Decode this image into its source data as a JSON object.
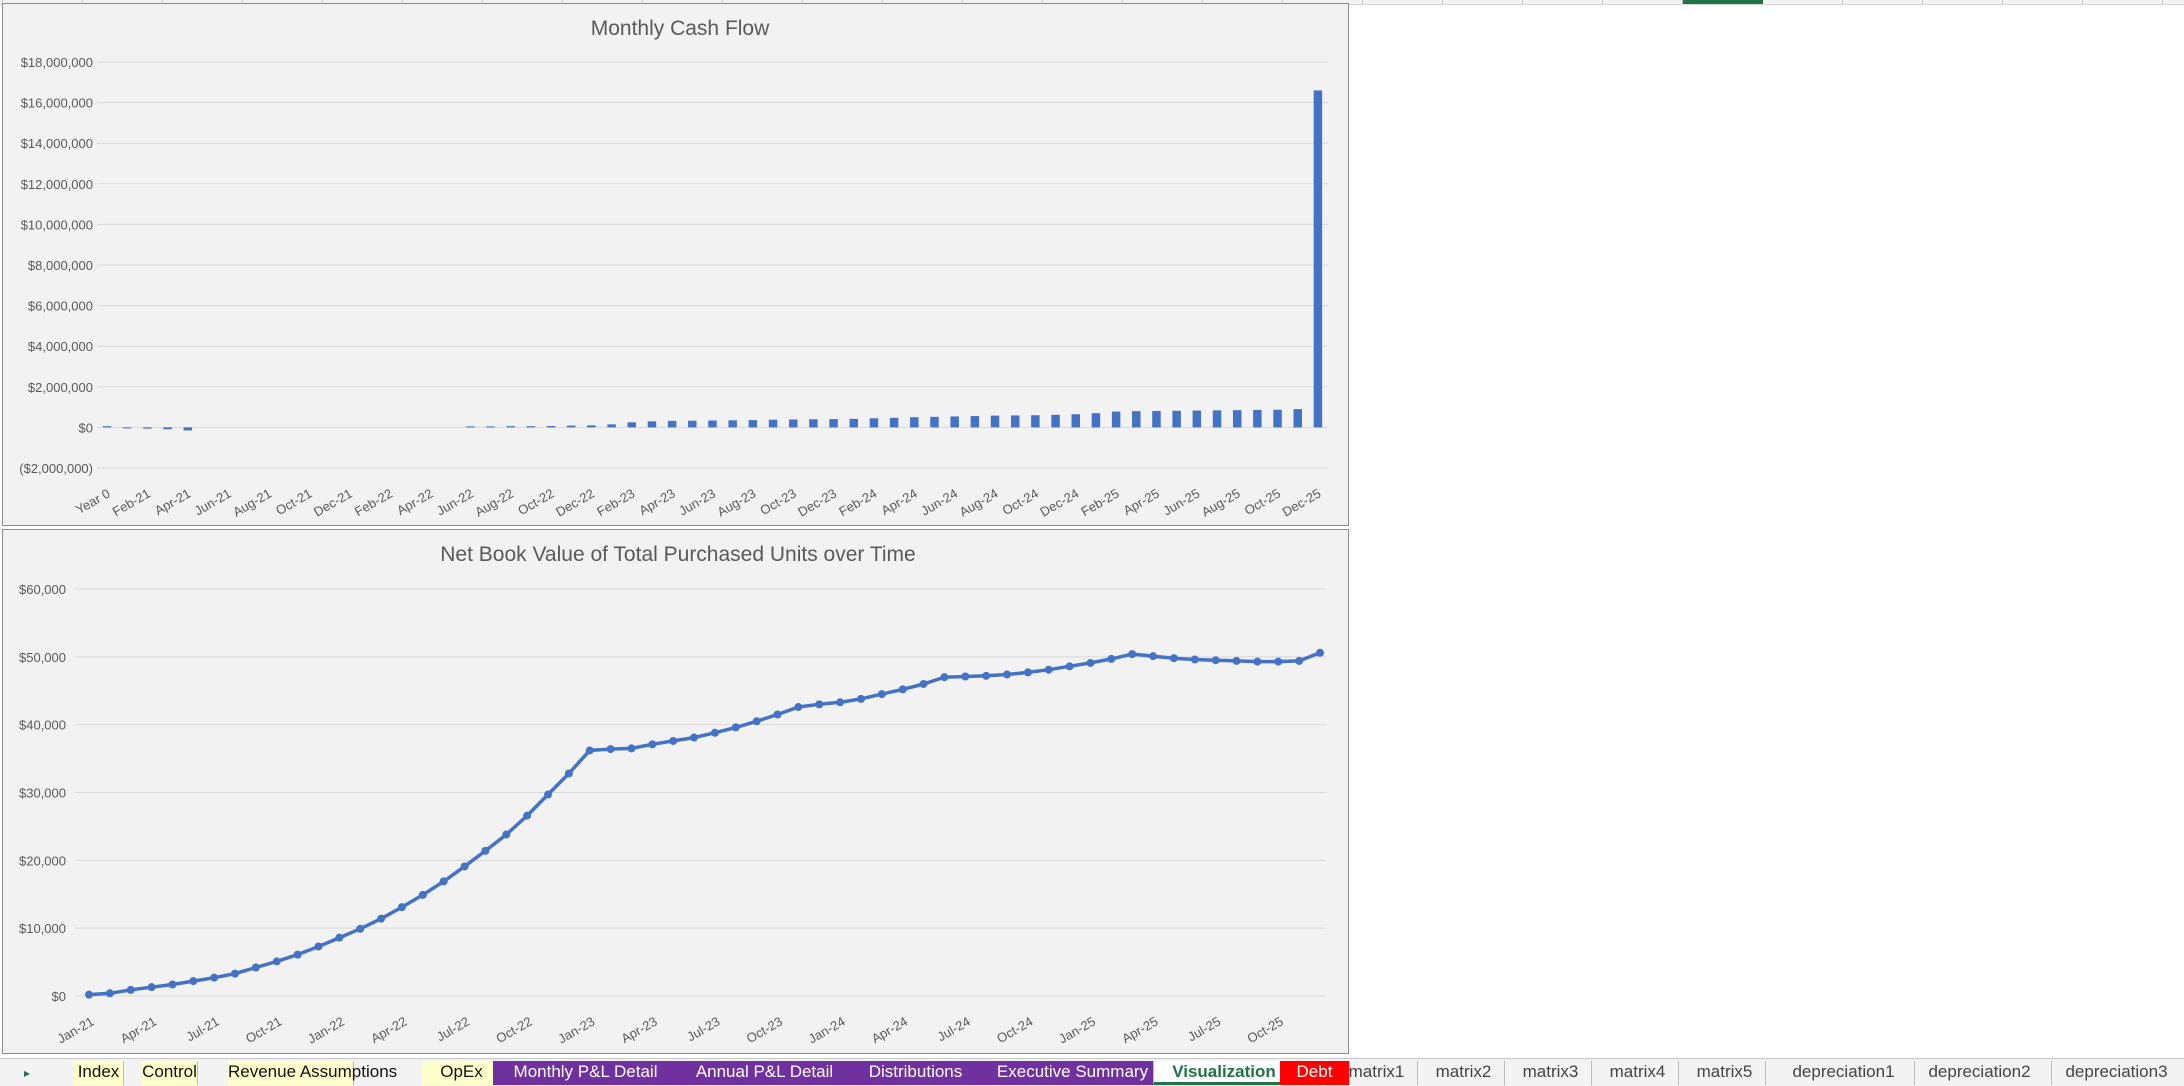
{
  "sheet_tabs": [
    {
      "label": "Index",
      "style": "yellow"
    },
    {
      "label": "Control",
      "style": "yellow"
    },
    {
      "label": "Revenue Assumptions",
      "style": "yellow"
    },
    {
      "label": "OpEx",
      "style": "yellow"
    },
    {
      "label": "Monthly P&L Detail",
      "style": "purple"
    },
    {
      "label": "Annual P&L Detail",
      "style": "purple"
    },
    {
      "label": "Distributions",
      "style": "purple"
    },
    {
      "label": "Executive Summary",
      "style": "purple"
    },
    {
      "label": "Visualization",
      "style": "active"
    },
    {
      "label": "Debt",
      "style": "red"
    },
    {
      "label": "matrix1",
      "style": "plain"
    },
    {
      "label": "matrix2",
      "style": "plain"
    },
    {
      "label": "matrix3",
      "style": "plain"
    },
    {
      "label": "matrix4",
      "style": "plain"
    },
    {
      "label": "matrix5",
      "style": "plain"
    },
    {
      "label": "depreciation1",
      "style": "plain"
    },
    {
      "label": "depreciation2",
      "style": "plain"
    },
    {
      "label": "depreciation3",
      "style": "plain"
    }
  ],
  "tab_nav_icon": "triangle-right-icon",
  "colors": {
    "series": "#4472c4",
    "gridline": "#d9d9d9",
    "chart_bg": "#f2f2f2",
    "active_tab": "#217346",
    "purple_tab": "#7030a0",
    "yellow_tab": "#ffffcc",
    "red_tab": "#ff0000"
  },
  "chart_data": [
    {
      "type": "bar",
      "title": "Monthly Cash Flow",
      "xlabel": "",
      "ylabel": "",
      "ylim": [
        -2000000,
        18000000
      ],
      "yticks": [
        -2000000,
        0,
        2000000,
        4000000,
        6000000,
        8000000,
        10000000,
        12000000,
        14000000,
        16000000,
        18000000
      ],
      "ytick_labels": [
        "($2,000,000)",
        "$0",
        "$2,000,000",
        "$4,000,000",
        "$6,000,000",
        "$8,000,000",
        "$10,000,000",
        "$12,000,000",
        "$14,000,000",
        "$16,000,000",
        "$18,000,000"
      ],
      "grid": true,
      "legend": "none",
      "categories": [
        "Year 0",
        "Jan-21",
        "Feb-21",
        "Mar-21",
        "Apr-21",
        "May-21",
        "Jun-21",
        "Jul-21",
        "Aug-21",
        "Sep-21",
        "Oct-21",
        "Nov-21",
        "Dec-21",
        "Jan-22",
        "Feb-22",
        "Mar-22",
        "Apr-22",
        "May-22",
        "Jun-22",
        "Jul-22",
        "Aug-22",
        "Sep-22",
        "Oct-22",
        "Nov-22",
        "Dec-22",
        "Jan-23",
        "Feb-23",
        "Mar-23",
        "Apr-23",
        "May-23",
        "Jun-23",
        "Jul-23",
        "Aug-23",
        "Sep-23",
        "Oct-23",
        "Nov-23",
        "Dec-23",
        "Jan-24",
        "Feb-24",
        "Mar-24",
        "Apr-24",
        "May-24",
        "Jun-24",
        "Jul-24",
        "Aug-24",
        "Sep-24",
        "Oct-24",
        "Nov-24",
        "Dec-24",
        "Jan-25",
        "Feb-25",
        "Mar-25",
        "Apr-25",
        "May-25",
        "Jun-25",
        "Jul-25",
        "Aug-25",
        "Sep-25",
        "Oct-25",
        "Nov-25",
        "Dec-25"
      ],
      "tick_labels": [
        "Year 0",
        "Feb-21",
        "Apr-21",
        "Jun-21",
        "Aug-21",
        "Oct-21",
        "Dec-21",
        "Feb-22",
        "Apr-22",
        "Jun-22",
        "Aug-22",
        "Oct-22",
        "Dec-22",
        "Feb-23",
        "Apr-23",
        "Jun-23",
        "Aug-23",
        "Oct-23",
        "Dec-23",
        "Feb-24",
        "Apr-24",
        "Jun-24",
        "Aug-24",
        "Oct-24",
        "Dec-24",
        "Feb-25",
        "Apr-25",
        "Jun-25",
        "Aug-25",
        "Oct-25",
        "Dec-25"
      ],
      "values": [
        60000,
        -20000,
        -60000,
        -90000,
        -150000,
        0,
        0,
        0,
        0,
        0,
        0,
        0,
        0,
        0,
        0,
        0,
        0,
        0,
        50000,
        50000,
        60000,
        60000,
        70000,
        90000,
        100000,
        150000,
        250000,
        300000,
        320000,
        330000,
        340000,
        350000,
        360000,
        380000,
        390000,
        400000,
        410000,
        420000,
        450000,
        470000,
        500000,
        520000,
        540000,
        560000,
        580000,
        590000,
        600000,
        620000,
        650000,
        700000,
        780000,
        800000,
        810000,
        820000,
        830000,
        840000,
        850000,
        860000,
        870000,
        900000,
        16600000
      ]
    },
    {
      "type": "line",
      "title": "Net Book Value of Total Purchased Units over Time",
      "xlabel": "",
      "ylabel": "",
      "ylim": [
        0,
        60000
      ],
      "yticks": [
        0,
        10000,
        20000,
        30000,
        40000,
        50000,
        60000
      ],
      "ytick_labels": [
        "$0",
        "$10,000",
        "$20,000",
        "$30,000",
        "$40,000",
        "$50,000",
        "$60,000"
      ],
      "grid": true,
      "legend": "none",
      "x": [
        "Jan-21",
        "Feb-21",
        "Mar-21",
        "Apr-21",
        "May-21",
        "Jun-21",
        "Jul-21",
        "Aug-21",
        "Sep-21",
        "Oct-21",
        "Nov-21",
        "Dec-21",
        "Jan-22",
        "Feb-22",
        "Mar-22",
        "Apr-22",
        "May-22",
        "Jun-22",
        "Jul-22",
        "Aug-22",
        "Sep-22",
        "Oct-22",
        "Nov-22",
        "Dec-22",
        "Jan-23",
        "Feb-23",
        "Mar-23",
        "Apr-23",
        "May-23",
        "Jun-23",
        "Jul-23",
        "Aug-23",
        "Sep-23",
        "Oct-23",
        "Nov-23",
        "Dec-23",
        "Jan-24",
        "Feb-24",
        "Mar-24",
        "Apr-24",
        "May-24",
        "Jun-24",
        "Jul-24",
        "Aug-24",
        "Sep-24",
        "Oct-24",
        "Nov-24",
        "Dec-24",
        "Jan-25",
        "Feb-25",
        "Mar-25",
        "Apr-25",
        "May-25",
        "Jun-25",
        "Jul-25",
        "Aug-25",
        "Sep-25",
        "Oct-25",
        "Nov-25",
        "Dec-25"
      ],
      "tick_labels": [
        "Jan-21",
        "Apr-21",
        "Jul-21",
        "Oct-21",
        "Jan-22",
        "Apr-22",
        "Jul-22",
        "Oct-22",
        "Jan-23",
        "Apr-23",
        "Jul-23",
        "Oct-23",
        "Jan-24",
        "Apr-24",
        "Jul-24",
        "Oct-24",
        "Jan-25",
        "Apr-25",
        "Jul-25",
        "Oct-25"
      ],
      "series": [
        {
          "values": [
            200,
            400,
            900,
            1300,
            1700,
            2200,
            2700,
            3300,
            4200,
            5100,
            6100,
            7300,
            8600,
            9900,
            11400,
            13100,
            14900,
            16900,
            19100,
            21400,
            23800,
            26600,
            29700,
            32800,
            36200,
            36400,
            36500,
            37100,
            37600,
            38100,
            38800,
            39600,
            40500,
            41500,
            42600,
            43000,
            43300,
            43800,
            44500,
            45200,
            46000,
            47000,
            47100,
            47200,
            47400,
            47700,
            48100,
            48600,
            49100,
            49700,
            50400,
            50100,
            49800,
            49600,
            49500,
            49400,
            49300,
            49300,
            49400,
            50600
          ]
        }
      ]
    }
  ]
}
